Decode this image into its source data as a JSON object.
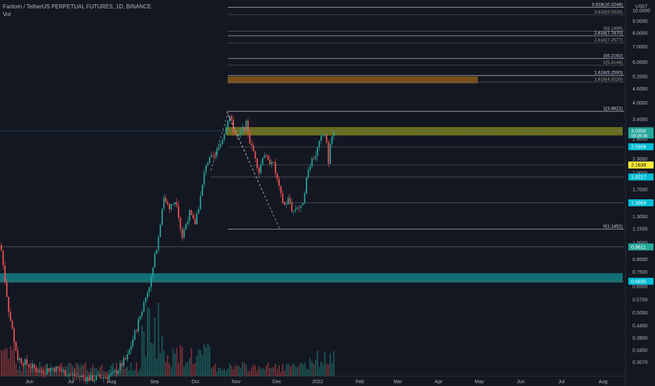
{
  "header": {
    "symbol_line": "Fantom / TetherUS PERPETUAL FUTURES, 1D, BINANCE",
    "volume_label": "Vol"
  },
  "price_axis": {
    "currency": "USDT",
    "scale": "log",
    "ticks": [
      "10.0000",
      "9.0000",
      "8.0000",
      "7.0000",
      "6.0000",
      "5.2000",
      "4.6000",
      "4.0000",
      "3.4000",
      "2.8000",
      "2.3000",
      "2.0000",
      "1.7000",
      "1.5000",
      "1.3000",
      "1.1500",
      "1.0000",
      "0.8500",
      "0.7500",
      "0.6500",
      "0.5700",
      "0.5000",
      "0.4400",
      "0.3900",
      "0.3450",
      "0.3070"
    ],
    "badges": [
      {
        "name": "current-price-badge",
        "price": 3.035,
        "label": "3.0350",
        "sub": "08:39:36",
        "bg": "#26a69a",
        "fg": "#ffffff"
      },
      {
        "name": "level-badge-2-5906",
        "price": 2.5906,
        "label": "2.5906",
        "bg": "#00bcd4",
        "fg": "#ffffff"
      },
      {
        "name": "level-badge-2-1639",
        "price": 2.1639,
        "label": "2.1639",
        "bg": "#ffeb3b",
        "fg": "#000000"
      },
      {
        "name": "level-badge-1-9217",
        "price": 1.9217,
        "label": "1.9217",
        "bg": "#00bcd4",
        "fg": "#ffffff"
      },
      {
        "name": "level-badge-1-4869",
        "price": 1.4869,
        "label": "1.4869",
        "bg": "#00bcd4",
        "fg": "#ffffff"
      },
      {
        "name": "level-badge-0-9611",
        "price": 0.9611,
        "label": "0.9611",
        "bg": "#26a69a",
        "fg": "#ffffff"
      },
      {
        "name": "level-badge-0-6835",
        "price": 0.6835,
        "label": "0.6835",
        "bg": "#00bcd4",
        "fg": "#ffffff"
      }
    ]
  },
  "time_axis": {
    "labels": [
      "Jun",
      "Jul",
      "Aug",
      "Sep",
      "Oct",
      "Nov",
      "Dec",
      "2022",
      "Feb",
      "Mar",
      "Apr",
      "May",
      "Jun",
      "Jul",
      "Aug"
    ]
  },
  "fib_levels": [
    {
      "label": "3.618(10.3248)",
      "price": 10.3248,
      "bold": true
    },
    {
      "label": "3.618(9.5926)",
      "price": 9.5926,
      "bold": false
    },
    {
      "label": "3(8.1496)",
      "price": 8.1496,
      "bold": false
    },
    {
      "label": "2.618(7.7870)",
      "price": 7.787,
      "bold": true
    },
    {
      "label": "2.618(7.2577)",
      "price": 7.2577,
      "bold": false
    },
    {
      "label": "2(6.2192)",
      "price": 6.2192,
      "bold": true
    },
    {
      "label": "2(5.8148)",
      "price": 5.8148,
      "bold": false
    },
    {
      "label": "1.618(5.2500)",
      "price": 5.25,
      "bold": true
    },
    {
      "label": "1.618(4.9229)",
      "price": 4.9229,
      "bold": false
    },
    {
      "label": "1(3.6822)",
      "price": 3.6822,
      "bold": true
    },
    {
      "label": "0(1.1452)",
      "price": 1.1452,
      "bold": true
    }
  ],
  "zones": [
    {
      "name": "orange-zone",
      "top": 5.2,
      "bottom": 4.86,
      "color": "#8a5a18"
    },
    {
      "name": "olive-resistance-zone",
      "top": 3.15,
      "bottom": 2.9,
      "color": "#7a7a1e"
    },
    {
      "name": "teal-support-zone",
      "top": 0.74,
      "bottom": 0.675,
      "color": "#137f86"
    }
  ],
  "colors": {
    "up": "#26a69a",
    "down": "#ef5350",
    "background": "#131722",
    "grid": "#2a2e39",
    "axis_text": "#b2b5be"
  }
}
